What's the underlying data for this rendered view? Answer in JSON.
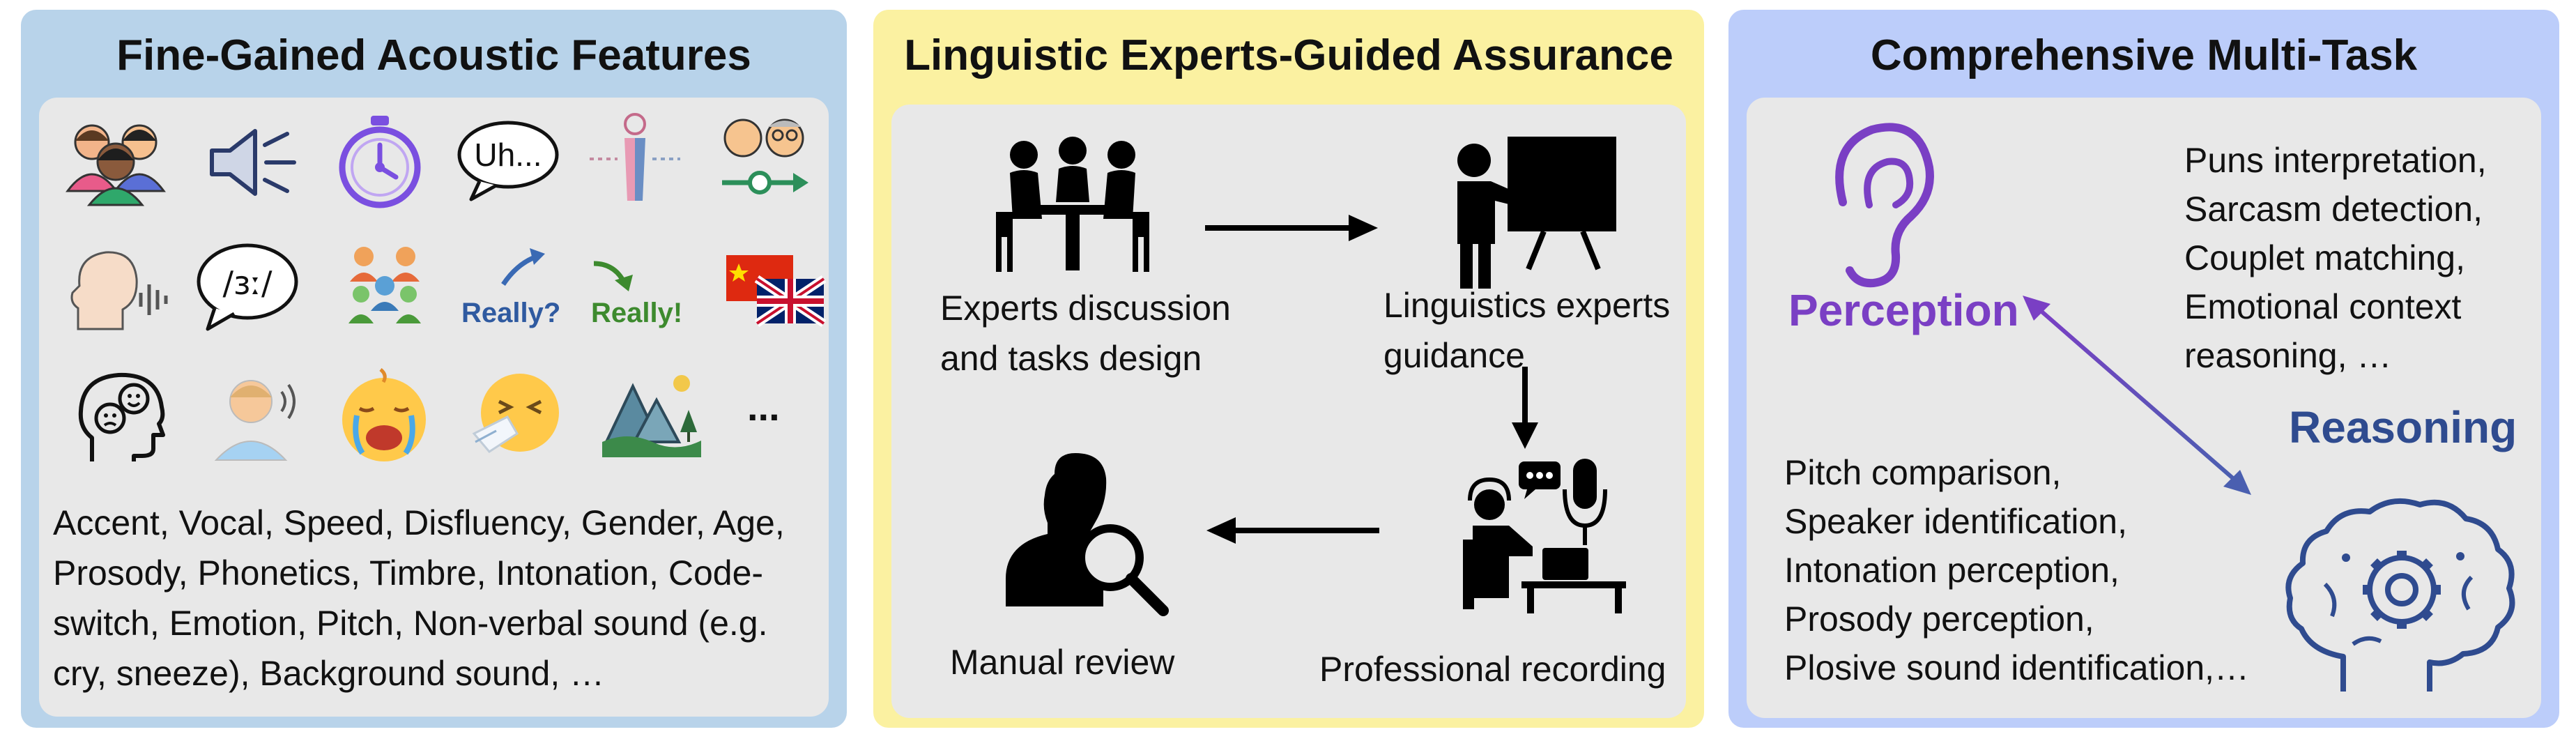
{
  "panels": {
    "acoustic": {
      "title": "Fine-Gained Acoustic Features",
      "uh_label": "Uh...",
      "phonetic_label": "/ɜː/",
      "really_question": "Really?",
      "really_exclaim": "Really!",
      "more_label": "...",
      "description_lines": [
        "Accent, Vocal, Speed, Disfluency, Gender, Age,",
        "Prosody, Phonetics, Timbre, Intonation, Code-",
        "switch, Emotion, Pitch, Non-verbal sound (e.g.",
        "cry, sneeze), Background sound, …"
      ]
    },
    "experts": {
      "title": "Linguistic Experts-Guided Assurance",
      "discussion_lines": [
        "Experts discussion",
        "and tasks design"
      ],
      "guidance_lines": [
        "Linguistics experts",
        "guidance"
      ],
      "recording_label": "Professional recording",
      "review_label": "Manual review"
    },
    "multitask": {
      "title": "Comprehensive Multi-Task",
      "perception_label": "Perception",
      "reasoning_label": "Reasoning",
      "reasoning_tasks": [
        "Puns interpretation,",
        "Sarcasm detection,",
        "Couplet matching,",
        "Emotional context",
        "reasoning, …"
      ],
      "perception_tasks": [
        "Pitch comparison,",
        "Speaker identification,",
        "Intonation perception,",
        "Prosody perception,",
        "Plosive sound identification,…"
      ]
    }
  },
  "colors": {
    "panel1_bg": "#b8d3ea",
    "panel2_bg": "#fbf1a1",
    "panel3_bg": "#bccdfa",
    "inner_bg": "#e8e8e8",
    "perception": "#7a3fc4",
    "reasoning": "#2f4b8f"
  }
}
